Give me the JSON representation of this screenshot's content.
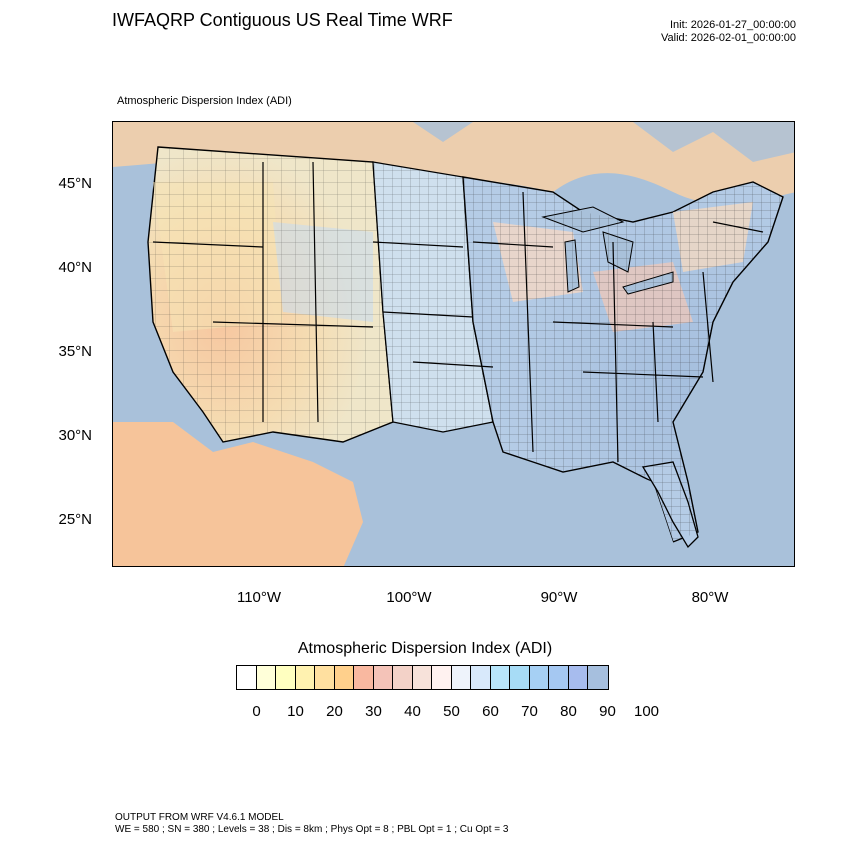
{
  "header": {
    "title": "IWFAQRP Contiguous US Real Time WRF",
    "init": "Init: 2026-01-27_00:00:00",
    "valid": "Valid: 2026-02-01_00:00:00"
  },
  "map": {
    "field_label": "Atmospheric Dispersion Index   (ADI)",
    "lat_labels": [
      "45°N",
      "40°N",
      "35°N",
      "30°N",
      "25°N"
    ],
    "lon_labels": [
      "110°W",
      "100°W",
      "90°W",
      "80°W"
    ],
    "colors": {
      "ocean": "#a9c1da",
      "low": "#f6c7a8",
      "mid": "#f4e0b0",
      "high": "#b8cfe6"
    }
  },
  "legend": {
    "title": "Atmospheric Dispersion Index  (ADI)",
    "colors": [
      "#ffffff",
      "#ffffd9",
      "#ffffc0",
      "#fff2b0",
      "#ffe0a0",
      "#ffd08c",
      "#f9b8a0",
      "#f4c3b8",
      "#f3d2c8",
      "#f7e2da",
      "#fff2f0",
      "#eef3fb",
      "#d8e9fb",
      "#b8e6fb",
      "#a7dcf6",
      "#a6d0f4",
      "#a5c8f2",
      "#a7bcee",
      "#a6bfde"
    ],
    "labels": [
      "0",
      "10",
      "20",
      "30",
      "40",
      "50",
      "60",
      "70",
      "80",
      "90",
      "100"
    ]
  },
  "footer": {
    "line1": "OUTPUT FROM WRF V4.6.1 MODEL",
    "line2": "WE = 580 ; SN = 380 ; Levels = 38 ; Dis = 8km ; Phys Opt = 8 ; PBL Opt = 1 ; Cu Opt = 3"
  }
}
